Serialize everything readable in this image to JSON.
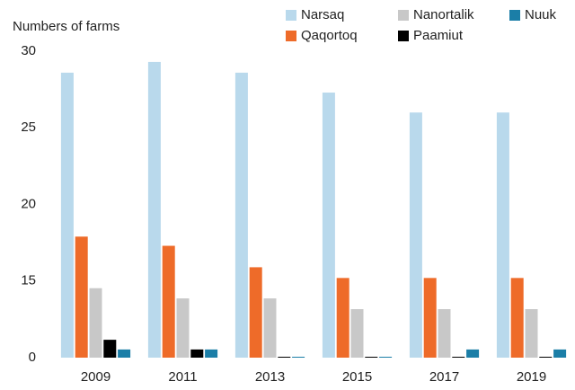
{
  "chart_data": {
    "type": "bar",
    "y_label": "Numbers of farms",
    "categories": [
      "2009",
      "2011",
      "2013",
      "2015",
      "2017",
      "2019"
    ],
    "series": [
      {
        "name": "Narsaq",
        "color": "#b9d9ec",
        "values": [
          28.6,
          29.3,
          28.6,
          27.3,
          26,
          26
        ]
      },
      {
        "name": "Qaqortoq",
        "color": "#ee6b29",
        "values": [
          17.9,
          17.3,
          15.9,
          15.2,
          15.2,
          15.2
        ]
      },
      {
        "name": "Nanortalik",
        "color": "#c8c8c8",
        "values": [
          13.6,
          11.6,
          11.6,
          9.5,
          9.5,
          9.5
        ]
      },
      {
        "name": "Paamiut",
        "color": "#000000",
        "values": [
          3.5,
          1.6,
          0,
          0,
          0,
          0
        ]
      },
      {
        "name": "Nuuk",
        "color": "#1b7ea7",
        "values": [
          1.6,
          1.6,
          0,
          0,
          1.6,
          1.6
        ]
      }
    ],
    "ylim": [
      0,
      30
    ],
    "yticks": [
      0,
      15,
      20,
      25,
      30
    ],
    "grid": false
  }
}
